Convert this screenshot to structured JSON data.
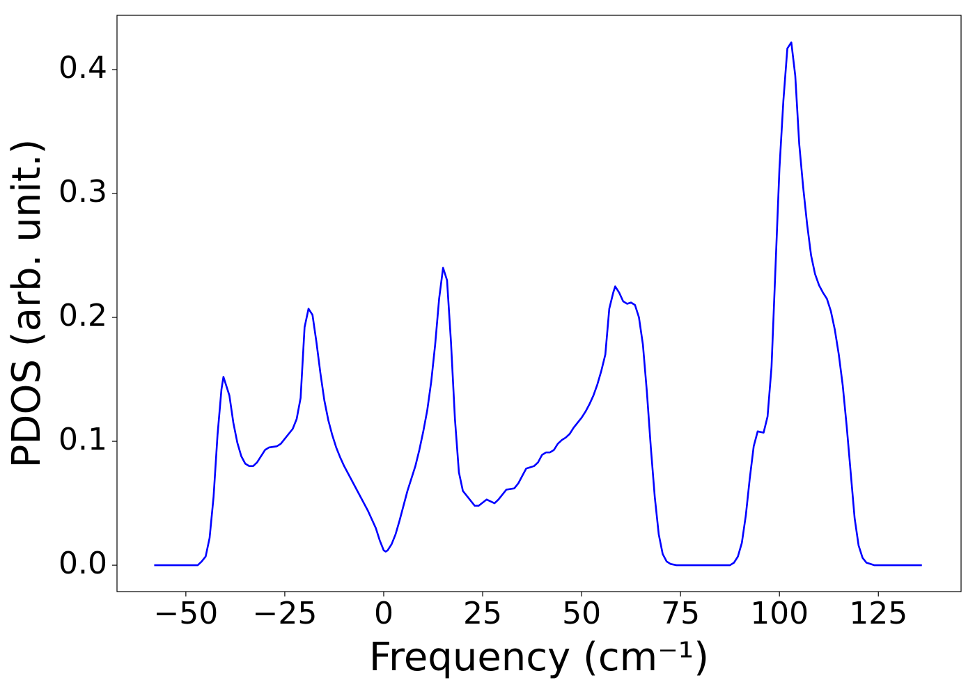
{
  "chart_data": {
    "type": "line",
    "xlabel": "Frequency (cm⁻¹)",
    "ylabel": "PDOS (arb. unit.)",
    "xlim": [
      -67.4,
      145.9
    ],
    "ylim": [
      -0.0213,
      0.4438
    ],
    "xticks": [
      {
        "value": -50,
        "label": "−50"
      },
      {
        "value": -25,
        "label": "−25"
      },
      0,
      25,
      50,
      75,
      100,
      125
    ],
    "yticks": [
      {
        "value": 0,
        "label": "0.0"
      },
      {
        "value": 0.1,
        "label": "0.1"
      },
      {
        "value": 0.2,
        "label": "0.2"
      },
      {
        "value": 0.3,
        "label": "0.3"
      },
      {
        "value": 0.4,
        "label": "0.4"
      }
    ],
    "grid": false,
    "x": [
      -58,
      -47,
      -46,
      -45,
      -44,
      -43,
      -42,
      -41,
      -40.5,
      -39,
      -38,
      -37,
      -36,
      -35,
      -34,
      -33,
      -32,
      -31,
      -30,
      -29,
      -27,
      -26,
      -25,
      -23,
      -22,
      -21,
      -20,
      -19,
      -18,
      -17,
      -16,
      -15,
      -14,
      -13,
      -12,
      -11,
      -10,
      -8,
      -6,
      -4,
      -2,
      -1,
      0,
      0.5,
      1,
      2,
      3,
      4,
      6,
      7,
      8,
      9,
      10,
      11,
      12,
      13,
      14,
      15,
      16,
      17,
      18,
      19,
      20,
      22,
      23,
      24,
      26,
      28,
      29,
      31,
      33,
      34,
      35,
      36,
      38,
      39,
      40,
      41,
      42,
      43,
      44,
      45,
      46,
      47,
      48,
      50,
      51,
      52,
      53,
      54,
      55,
      56,
      57,
      58,
      58.5,
      59.5,
      60.5,
      61.5,
      62.5,
      63.5,
      64.5,
      65.5,
      66.5,
      67.5,
      68.5,
      69.5,
      70.5,
      71.5,
      72.5,
      74,
      87.5,
      88.5,
      89.5,
      90.5,
      91.5,
      92.5,
      93.5,
      94.5,
      96,
      97,
      98,
      99,
      100,
      101,
      102,
      103,
      104,
      105,
      106,
      107,
      108,
      109,
      110,
      111,
      112,
      113,
      114,
      115,
      116,
      117,
      118,
      119,
      120,
      121,
      122,
      123,
      124,
      136
    ],
    "series": [
      {
        "name": "PDOS",
        "color": "#0000ff",
        "values": [
          0,
          0,
          0.003,
          0.007,
          0.022,
          0.055,
          0.105,
          0.142,
          0.152,
          0.137,
          0.115,
          0.099,
          0.088,
          0.082,
          0.08,
          0.08,
          0.083,
          0.088,
          0.093,
          0.095,
          0.096,
          0.098,
          0.102,
          0.11,
          0.118,
          0.135,
          0.192,
          0.207,
          0.202,
          0.18,
          0.155,
          0.133,
          0.117,
          0.105,
          0.095,
          0.087,
          0.08,
          0.068,
          0.056,
          0.044,
          0.03,
          0.02,
          0.012,
          0.011,
          0.012,
          0.017,
          0.025,
          0.036,
          0.06,
          0.07,
          0.08,
          0.093,
          0.108,
          0.125,
          0.148,
          0.178,
          0.215,
          0.24,
          0.23,
          0.18,
          0.118,
          0.075,
          0.06,
          0.052,
          0.048,
          0.048,
          0.053,
          0.05,
          0.053,
          0.061,
          0.062,
          0.066,
          0.072,
          0.078,
          0.08,
          0.083,
          0.089,
          0.091,
          0.091,
          0.093,
          0.098,
          0.101,
          0.103,
          0.106,
          0.111,
          0.119,
          0.124,
          0.13,
          0.137,
          0.146,
          0.157,
          0.17,
          0.207,
          0.22,
          0.225,
          0.22,
          0.213,
          0.211,
          0.212,
          0.21,
          0.2,
          0.178,
          0.14,
          0.095,
          0.055,
          0.025,
          0.009,
          0.003,
          0.001,
          0,
          0,
          0.002,
          0.007,
          0.018,
          0.04,
          0.07,
          0.096,
          0.108,
          0.107,
          0.12,
          0.16,
          0.24,
          0.32,
          0.375,
          0.417,
          0.422,
          0.395,
          0.34,
          0.305,
          0.275,
          0.25,
          0.235,
          0.226,
          0.22,
          0.215,
          0.205,
          0.19,
          0.17,
          0.145,
          0.112,
          0.075,
          0.038,
          0.016,
          0.006,
          0.002,
          0.001,
          0,
          0
        ]
      }
    ]
  }
}
